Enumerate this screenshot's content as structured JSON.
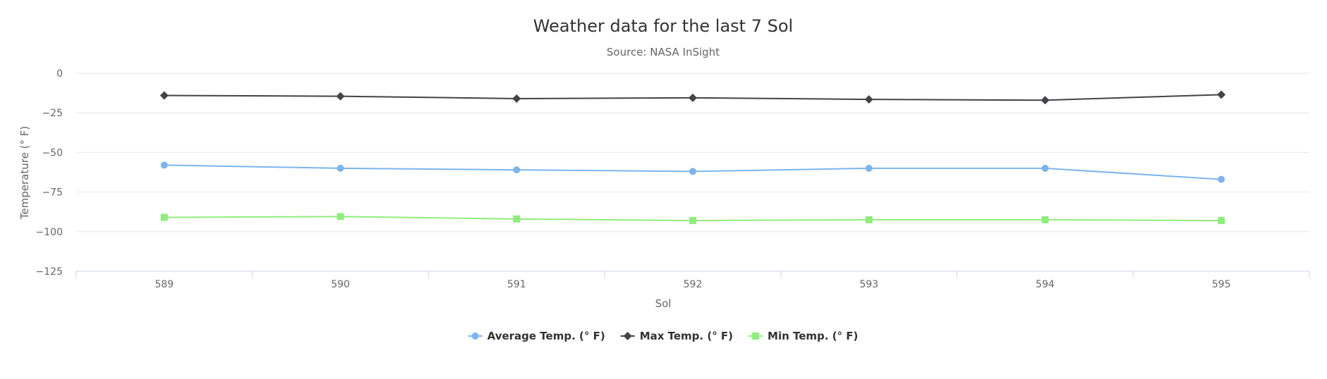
{
  "chart_data": {
    "type": "line",
    "title": "Weather data for the last 7 Sol",
    "subtitle": "Source: NASA InSight",
    "xlabel": "Sol",
    "ylabel": "Temperature (° F)",
    "categories": [
      "589",
      "590",
      "591",
      "592",
      "593",
      "594",
      "595"
    ],
    "ylim": [
      -125,
      0
    ],
    "yticks": [
      0,
      -25,
      -50,
      -75,
      -100,
      -125
    ],
    "grid": true,
    "legend_position": "bottom-center",
    "series": [
      {
        "name": "Average Temp. (° F)",
        "color": "#7cb5ec",
        "marker": "circle",
        "values": [
          -58,
          -60,
          -61,
          -62,
          -60,
          -60,
          -67
        ]
      },
      {
        "name": "Max Temp. (° F)",
        "color": "#434348",
        "marker": "diamond",
        "values": [
          -14,
          -14.5,
          -16,
          -15.5,
          -16.5,
          -17,
          -13.5
        ]
      },
      {
        "name": "Min Temp. (° F)",
        "color": "#90ed7d",
        "marker": "square",
        "values": [
          -91,
          -90.5,
          -92,
          -93,
          -92.5,
          -92.5,
          -93
        ]
      }
    ]
  }
}
